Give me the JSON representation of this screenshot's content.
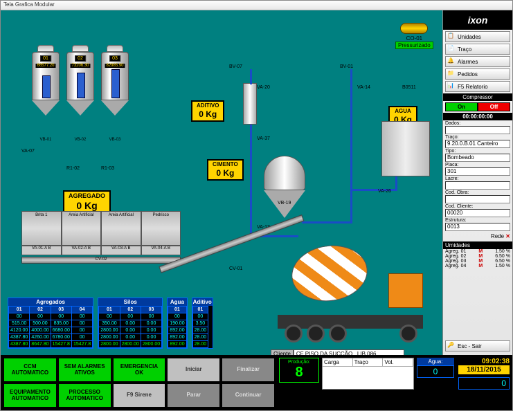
{
  "window": {
    "title": "Tela Grafica Modular"
  },
  "silos": [
    {
      "id": "01",
      "value": "66577.20",
      "label": "VB-01",
      "level_pct": 55
    },
    {
      "id": "02",
      "value": "73206.30",
      "label": "VB-02",
      "level_pct": 62
    },
    {
      "id": "03",
      "value": "82985.90",
      "label": "VB-03",
      "level_pct": 70
    }
  ],
  "silo_aux": {
    "va": "VA-07",
    "r1": "R1-02",
    "r2": "R1-03"
  },
  "displays": {
    "agregado": {
      "title": "AGREGADO",
      "value": "0 Kg"
    },
    "aditivo": {
      "title": "ADITIVO",
      "value": "0 Kg"
    },
    "cimento": {
      "title": "CIMENTO",
      "value": "0 Kg"
    },
    "agua": {
      "title": "AGUA",
      "value": "0 Kg"
    }
  },
  "bins": {
    "names": [
      "Brita 1",
      "Areia Artificial",
      "Areia Artificial",
      "Pedrisco"
    ],
    "valves": [
      "VA-01-A  B",
      "VA-02-A  B",
      "VA-03-A  B",
      "VA-04-A  B"
    ],
    "belt1": "CV-02",
    "belt2": "CV-01",
    "vb": "VB-08"
  },
  "valves": {
    "bv07": "BV-07",
    "va20": "VA-20",
    "va37": "VA-37",
    "vb19": "VB-19",
    "va13": "VA-13",
    "bv01": "BV-01",
    "va14": "VA-14",
    "va26": "VA-26",
    "b0511": "B0511"
  },
  "compressor_widget": {
    "id": "CO-01",
    "status": "Pressurizado"
  },
  "tables": {
    "agregados": {
      "title": "Agregados",
      "cols": [
        "01",
        "02",
        "03",
        "04"
      ],
      "rows": [
        [
          "00",
          "00",
          "00",
          "00"
        ],
        [
          "515.00",
          "500.00",
          "835.00",
          "00"
        ],
        [
          "4120.00",
          "4000.00",
          "6680.00",
          "00"
        ],
        [
          "4387.80",
          "4260.00",
          "6780.00",
          "00"
        ]
      ],
      "sums": [
        "4387.80",
        "8647.80",
        "15427.8",
        "15427.8"
      ]
    },
    "silos": {
      "title": "Silos",
      "cols": [
        "01",
        "02",
        "03"
      ],
      "rows": [
        [
          "00",
          "00",
          "00"
        ],
        [
          "350.00",
          "0.00",
          "0.00"
        ],
        [
          "2800.00",
          "0.00",
          "0.00"
        ],
        [
          "2800.00",
          "0.00",
          "0.00"
        ]
      ],
      "sums": [
        "2800.00",
        "2800.00",
        "2800.00"
      ]
    },
    "agua": {
      "title": "Agua",
      "cols": [
        "01"
      ],
      "rows": [
        [
          "00"
        ],
        [
          "190.00"
        ],
        [
          "892.00"
        ],
        [
          "892.00"
        ]
      ],
      "sums": [
        "892.00"
      ]
    },
    "aditivo": {
      "title": "Aditivo",
      "cols": [
        "01"
      ],
      "rows": [
        [
          "00"
        ],
        [
          "3.50"
        ],
        [
          "28.00"
        ],
        [
          "28.00"
        ]
      ],
      "sums": [
        "28.00"
      ]
    }
  },
  "client": {
    "label": "Cliente",
    "value": "CF PISO DA SUCÇÃO . LIB 086"
  },
  "sidebar": {
    "logo": "ixon",
    "buttons": [
      {
        "icon": "📋",
        "label": "Unidades"
      },
      {
        "icon": "📄",
        "label": "Traço"
      },
      {
        "icon": "🔔",
        "label": "Alarmes"
      },
      {
        "icon": "📁",
        "label": "Pedidos"
      },
      {
        "icon": "📊",
        "label": "F5 Relatorio"
      }
    ],
    "compressor": {
      "label": "Compressor",
      "on": "On",
      "off": "Off",
      "on_color": "#00d000",
      "off_color": "#f00000"
    },
    "timer": "00:00:00:00",
    "fields": [
      {
        "label": "Dados:",
        "value": ""
      },
      {
        "label": "Traço:",
        "value": "9.20.0.B.01 Canteiro"
      },
      {
        "label": "Tipo:",
        "value": "Bombeado"
      },
      {
        "label": "Placa:",
        "value": "301"
      },
      {
        "label": "Lacre:",
        "value": ""
      },
      {
        "label": "Cod. Obra:",
        "value": ""
      },
      {
        "label": "Cod. Cliente:",
        "value": "00020"
      },
      {
        "label": "Estrutura:",
        "value": "0013"
      }
    ],
    "rede": "Rede",
    "humidity": {
      "title": "Umidades",
      "rows": [
        {
          "name": "Agreg. 01",
          "mk": "M",
          "val": "1.50 %"
        },
        {
          "name": "Agreg. 02",
          "mk": "M",
          "val": "6.50 %"
        },
        {
          "name": "Agreg. 03",
          "mk": "M",
          "val": "6.50 %"
        },
        {
          "name": "Agreg. 04",
          "mk": "M",
          "val": "1.50 %"
        }
      ]
    },
    "exit": {
      "icon": "🔑",
      "label": "Esc - Sair"
    }
  },
  "footer": {
    "row1": [
      {
        "label": "CCM\nAUTOMATICO",
        "cls": "green"
      },
      {
        "label": "SEM ALARMES\nATIVOS",
        "cls": "green"
      },
      {
        "label": "EMERGENCIA\nOK",
        "cls": "green"
      },
      {
        "label": "Iniciar",
        "cls": "grey"
      },
      {
        "label": "Finalizar",
        "cls": "dgrey"
      }
    ],
    "row2": [
      {
        "label": "EQUIPAMENTO\nAUTOMATICO",
        "cls": "green"
      },
      {
        "label": "PROCESSO\nAUTOMATICO",
        "cls": "green"
      },
      {
        "label": "F9 Sirene",
        "cls": "grey"
      },
      {
        "label": "Parar",
        "cls": "dgrey"
      },
      {
        "label": "Continuar",
        "cls": "dgrey"
      }
    ],
    "producao": {
      "label": "Produção:",
      "value": "8"
    },
    "grid_cols": [
      "Carga",
      "Traço",
      "Vol."
    ],
    "clock": "09:02:38",
    "date": "18/11/2015",
    "agua": {
      "label": "Agua:",
      "value": "0"
    },
    "tot": "0"
  },
  "colors": {
    "bg": "#008080",
    "accent": "#ffd400",
    "pipe": "#1a4bc7",
    "green": "#00d000",
    "red": "#f00000",
    "tbl_border": "#0066ff",
    "tbl_head": "#003a9e",
    "cyan": "#00ffff"
  }
}
